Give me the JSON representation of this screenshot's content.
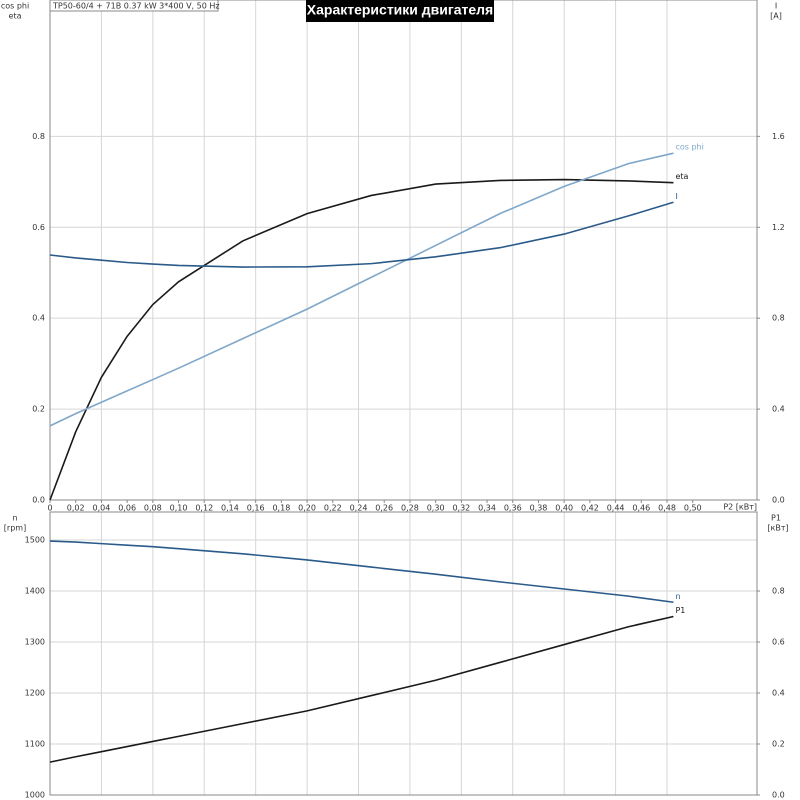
{
  "chart_data": [
    {
      "type": "line",
      "title": "Характеристики двигателя",
      "legend_text": "TP50-60/4 + 71B  0.37 kW  3*400 V, 50 Hz",
      "ylabel": [
        "cos phi",
        "eta"
      ],
      "y2label": [
        "I",
        "[A]"
      ],
      "xlabel": "P2 [кВт]",
      "x": [
        0,
        0.02,
        0.04,
        0.06,
        0.08,
        0.1,
        0.15,
        0.2,
        0.25,
        0.3,
        0.35,
        0.4,
        0.45,
        0.485
      ],
      "series": [
        {
          "name": "eta",
          "color": "#1a1a1a",
          "values": [
            0,
            0.15,
            0.27,
            0.36,
            0.43,
            0.48,
            0.57,
            0.63,
            0.67,
            0.695,
            0.703,
            0.705,
            0.702,
            0.698
          ]
        },
        {
          "name": "cos phi",
          "color": "#7fa7c9",
          "values": [
            0.163,
            0.19,
            0.215,
            0.24,
            0.265,
            0.29,
            0.355,
            0.42,
            0.49,
            0.56,
            0.63,
            0.69,
            0.74,
            0.763
          ]
        },
        {
          "name": "I",
          "color": "#2a5a8a",
          "axis": "y2",
          "values": [
            1.078,
            1.065,
            1.055,
            1.045,
            1.038,
            1.032,
            1.025,
            1.026,
            1.04,
            1.07,
            1.11,
            1.17,
            1.25,
            1.31
          ]
        }
      ],
      "xlim": [
        0,
        0.55
      ],
      "xticks": [
        0,
        {
          "value": 0.02,
          "label": "0,02"
        },
        {
          "value": 0.04,
          "label": "0,04"
        },
        {
          "value": 0.06,
          "label": "0,06"
        },
        {
          "value": 0.08,
          "label": "0,08"
        },
        {
          "value": 0.1,
          "label": "0,10"
        },
        {
          "value": 0.12,
          "label": "0,12"
        },
        {
          "value": 0.14,
          "label": "0,14"
        },
        {
          "value": 0.16,
          "label": "0,16"
        },
        {
          "value": 0.18,
          "label": "0,18"
        },
        {
          "value": 0.2,
          "label": "0,20"
        },
        {
          "value": 0.22,
          "label": "0,22"
        },
        {
          "value": 0.24,
          "label": "0,24"
        },
        {
          "value": 0.26,
          "label": "0,26"
        },
        {
          "value": 0.28,
          "label": "0,28"
        },
        {
          "value": 0.3,
          "label": "0,30"
        },
        {
          "value": 0.32,
          "label": "0,32"
        },
        {
          "value": 0.34,
          "label": "0,34"
        },
        {
          "value": 0.36,
          "label": "0,36"
        },
        {
          "value": 0.38,
          "label": "0,38"
        },
        {
          "value": 0.4,
          "label": "0,40"
        },
        {
          "value": 0.42,
          "label": "0,42"
        },
        {
          "value": 0.44,
          "label": "0,44"
        },
        {
          "value": 0.46,
          "label": "0,46"
        },
        {
          "value": 0.48,
          "label": "0,48"
        },
        {
          "value": 0.5,
          "label": "0,50"
        }
      ],
      "ylim": [
        0,
        1.1
      ],
      "yticks": [
        {
          "value": 0,
          "label": "0.0"
        },
        0.2,
        0.4,
        0.6,
        0.8
      ],
      "y2lim": [
        0,
        2.2
      ],
      "y2ticks": [
        {
          "value": 0,
          "label": "0.0"
        },
        0.4,
        0.8,
        1.2,
        1.6
      ],
      "grid": true
    },
    {
      "type": "line",
      "ylabel": [
        "n",
        "[rpm]"
      ],
      "y2label": [
        "P1",
        "[кВт]"
      ],
      "x": [
        0,
        0.02,
        0.04,
        0.06,
        0.08,
        0.1,
        0.15,
        0.2,
        0.25,
        0.3,
        0.35,
        0.4,
        0.45,
        0.485
      ],
      "series": [
        {
          "name": "n",
          "color": "#2a5a8a",
          "values": [
            1498,
            1496,
            1493,
            1490,
            1487,
            1483,
            1473,
            1461,
            1447,
            1433,
            1418,
            1404,
            1390,
            1378
          ]
        },
        {
          "name": "P1",
          "color": "#1a1a1a",
          "axis": "y2",
          "values": [
            0.129,
            0.15,
            0.17,
            0.19,
            0.21,
            0.23,
            0.28,
            0.33,
            0.39,
            0.45,
            0.52,
            0.59,
            0.66,
            0.7
          ]
        }
      ],
      "xlim": [
        0,
        0.55
      ],
      "ylim": [
        1000,
        1555
      ],
      "yticks": [
        1000,
        1100,
        1200,
        1300,
        1400,
        1500
      ],
      "y2lim": [
        0,
        1.11
      ],
      "y2ticks": [
        {
          "value": 0,
          "label": "0.0"
        },
        0.2,
        0.4,
        0.6,
        0.8
      ],
      "grid": true
    }
  ]
}
